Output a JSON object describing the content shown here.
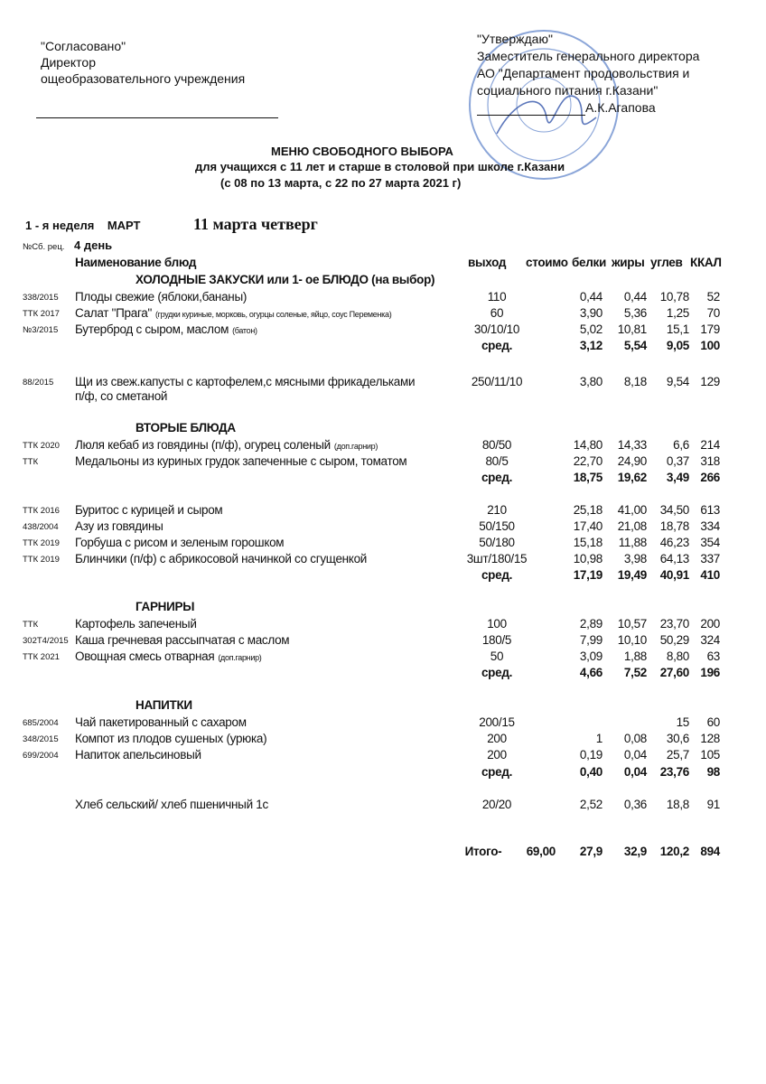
{
  "left_block": {
    "line1": "\"Согласовано\"",
    "line2": "Директор",
    "line3": "ощеобразовательного учреждения"
  },
  "right_block": {
    "line1": "\"Утверждаю\"",
    "line2": "Заместитель генерального директора",
    "line3": "АО \"Департамент продовольствия и",
    "line4": "социального питания г.Казани\"",
    "signer": "А.К.Агапова"
  },
  "stamp_text": "Департамент продовольствия и социального питания г.Казани",
  "stamp_color": "#5a7fc8",
  "title": {
    "line1": "МЕНЮ  СВОБОДНОГО  ВЫБОРА",
    "line2": "для  учащихся с 11 лет и старше  в  столовой при школе г.Казани",
    "line3": "(с 08 по 13 марта, с 22 по 27 марта 2021 г)"
  },
  "week": "1 - я неделя    МАРТ",
  "date": "11 марта четверг",
  "recipe_label": "№Сб. рец.",
  "day": "4 день",
  "rows": [
    {
      "type": "header",
      "name": "Наименование  блюд",
      "out": "выход",
      "cost": "стоимо",
      "p": "белки",
      "f": "жиры",
      "c": "углев",
      "k": "ККАЛ"
    },
    {
      "type": "section",
      "name": "ХОЛОДНЫЕ  ЗАКУСКИ  или 1- ое БЛЮДО (на выбор)"
    },
    {
      "type": "item",
      "code": "338/2015",
      "name": "Плоды свежие (яблоки,бананы)",
      "out": "110",
      "p": "0,44",
      "f": "0,44",
      "c": "10,78",
      "k": "52"
    },
    {
      "type": "item",
      "code": "ТТК 2017",
      "name": "Салат \"Прага\"",
      "note": "(грудки куриные, морковь, огурцы соленые, яйцо, соус Переменка)",
      "out": "60",
      "p": "3,90",
      "f": "5,36",
      "c": "1,25",
      "k": "70"
    },
    {
      "type": "item",
      "code": "№3/2015",
      "name": "Бутерброд с сыром, маслом",
      "note": "(батон)",
      "out": "30/10/10",
      "p": "5,02",
      "f": "10,81",
      "c": "15,1",
      "k": "179"
    },
    {
      "type": "avg",
      "out": "сред.",
      "p": "3,12",
      "f": "5,54",
      "c": "9,05",
      "k": "100"
    },
    {
      "type": "item",
      "code": "88/2015",
      "name": "Щи из свеж.капусты с картофелем,с мясными фрикадельками",
      "out": "250/11/10",
      "p": "3,80",
      "f": "8,18",
      "c": "9,54",
      "k": "129"
    },
    {
      "type": "cont",
      "name": "п/ф, со сметаной"
    },
    {
      "type": "section",
      "name": "ВТОРЫЕ  БЛЮДА"
    },
    {
      "type": "item",
      "code": "ТТК 2020",
      "name": "Люля кебаб из говядины (п/ф), огурец соленый",
      "note": "(доп.гарнир)",
      "out": "80/50",
      "p": "14,80",
      "f": "14,33",
      "c": "6,6",
      "k": "214"
    },
    {
      "type": "item",
      "code": "ТТК",
      "name": "Медальоны из куриных грудок запеченные с сыром, томатом",
      "out": "80/5",
      "p": "22,70",
      "f": "24,90",
      "c": "0,37",
      "k": "318"
    },
    {
      "type": "avg",
      "out": "сред.",
      "p": "18,75",
      "f": "19,62",
      "c": "3,49",
      "k": "266"
    },
    {
      "type": "item",
      "code": "ТТК 2016",
      "name": "Буритос с курицей и сыром",
      "out": "210",
      "p": "25,18",
      "f": "41,00",
      "c": "34,50",
      "k": "613"
    },
    {
      "type": "item",
      "code": "438/2004",
      "name": "Азу из говядины",
      "out": "50/150",
      "p": "17,40",
      "f": "21,08",
      "c": "18,78",
      "k": "334"
    },
    {
      "type": "item",
      "code": "ТТК 2019",
      "name": "Горбуша с рисом и зеленым горошком",
      "out": "50/180",
      "p": "15,18",
      "f": "11,88",
      "c": "46,23",
      "k": "354"
    },
    {
      "type": "item",
      "code": "ТТК 2019",
      "name": "Блинчики (п/ф) с абрикосовой начинкой со сгущенкой",
      "out": "3шт/180/15",
      "p": "10,98",
      "f": "3,98",
      "c": "64,13",
      "k": "337"
    },
    {
      "type": "avg",
      "out": "сред.",
      "p": "17,19",
      "f": "19,49",
      "c": "40,91",
      "k": "410"
    },
    {
      "type": "section",
      "name": "ГАРНИРЫ"
    },
    {
      "type": "item",
      "code": "ТТК",
      "name": "Картофель запеченый",
      "out": "100",
      "p": "2,89",
      "f": "10,57",
      "c": "23,70",
      "k": "200"
    },
    {
      "type": "item",
      "code": "302Т4/2015",
      "name": "Каша гречневая  рассыпчатая с маслом",
      "out": "180/5",
      "p": "7,99",
      "f": "10,10",
      "c": "50,29",
      "k": "324"
    },
    {
      "type": "item",
      "code": "ТТК 2021",
      "name": "Овощная смесь  отварная",
      "note": "(доп.гарнир)",
      "out": "50",
      "p": "3,09",
      "f": "1,88",
      "c": "8,80",
      "k": "63"
    },
    {
      "type": "avg",
      "out": "сред.",
      "p": "4,66",
      "f": "7,52",
      "c": "27,60",
      "k": "196"
    },
    {
      "type": "section",
      "name": "НАПИТКИ"
    },
    {
      "type": "item",
      "code": "685/2004",
      "name": "Чай пакетированный с сахаром",
      "out": "200/15",
      "c": "15",
      "k": "60"
    },
    {
      "type": "item",
      "code": "348/2015",
      "name": "Компот из плодов сушеных (урюка)",
      "out": "200",
      "p": "1",
      "f": "0,08",
      "c": "30,6",
      "k": "128"
    },
    {
      "type": "item",
      "code": "699/2004",
      "name": "Напиток апельсиновый",
      "out": "200",
      "p": "0,19",
      "f": "0,04",
      "c": "25,7",
      "k": "105"
    },
    {
      "type": "avg",
      "out": "сред.",
      "p": "0,40",
      "f": "0,04",
      "c": "23,76",
      "k": "98"
    },
    {
      "type": "item",
      "name": "Хлеб сельский/ хлеб пшеничный 1с",
      "out": "20/20",
      "p": "2,52",
      "f": "0,36",
      "c": "18,8",
      "k": "91"
    },
    {
      "type": "total",
      "out": "Итого-",
      "cost": "69,00",
      "p": "27,9",
      "f": "32,9",
      "c": "120,2",
      "k": "894"
    }
  ]
}
